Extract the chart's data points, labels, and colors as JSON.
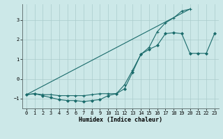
{
  "xlabel": "Humidex (Indice chaleur)",
  "bg_color": "#cce8e8",
  "grid_color": "#aacccc",
  "line_color": "#1a6b6b",
  "xlim": [
    -0.5,
    23.5
  ],
  "ylim": [
    -1.5,
    3.8
  ],
  "yticks": [
    -1,
    0,
    1,
    2,
    3
  ],
  "xticks": [
    0,
    1,
    2,
    3,
    4,
    5,
    6,
    7,
    8,
    9,
    10,
    11,
    12,
    13,
    14,
    15,
    16,
    17,
    18,
    19,
    20,
    21,
    22,
    23
  ],
  "line1_y": [
    -0.8,
    -0.75,
    -0.8,
    -0.8,
    -0.85,
    -0.85,
    -0.85,
    -0.85,
    -0.8,
    -0.75,
    -0.75,
    -0.75,
    -0.3,
    0.45,
    1.25,
    1.6,
    2.4,
    2.85,
    3.1,
    3.45,
    3.55,
    null,
    null
  ],
  "line2_x": [
    0,
    20
  ],
  "line2_y": [
    -0.8,
    3.55
  ],
  "line3_y": [
    -0.8,
    -0.75,
    -0.85,
    -0.95,
    -1.05,
    -1.1,
    -1.1,
    -1.15,
    -1.1,
    -1.05,
    -0.85,
    -0.75,
    -0.5,
    0.35,
    1.25,
    1.5,
    1.7,
    2.3,
    2.35,
    2.3,
    1.3,
    1.3,
    1.3,
    2.3
  ]
}
